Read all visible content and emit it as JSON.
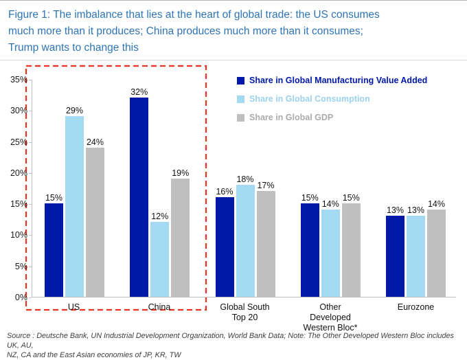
{
  "title_lines": [
    "Figure 1: The imbalance that lies at the heart of global trade: the US consumes",
    "much more than it produces; China produces much more than it consumes;",
    "Trump wants to change this"
  ],
  "source_lines": [
    "Source : Deutsche Bank, UN Industrial Development Organization, World Bank Data; Note: The Other Developed Western Bloc includes UK, AU,",
    "NZ, CA and the East Asian economies of JP, KR, TW"
  ],
  "colors": {
    "title_text": "#2E74B5",
    "axis_line": "#BFBFBF",
    "tick_text": "#1A1A1A",
    "value_label_text": "#111111",
    "highlight_box": "#EA3323"
  },
  "chart_data": {
    "type": "bar",
    "title": "Figure 1: The imbalance that lies at the heart of global trade: the US consumes much more than it produces; China produces much more than it consumes; Trump wants to change this",
    "categories": [
      "US",
      "China",
      "Global South Top 20",
      "Other Developed Western Bloc*",
      "Eurozone"
    ],
    "series": [
      {
        "name": "Share in Global Manufacturing Value Added",
        "color": "#0018A8",
        "text_color": "#0018A8",
        "values": [
          15,
          32,
          16,
          15,
          13
        ]
      },
      {
        "name": "Share in Global Consumption",
        "color": "#A4D9F2",
        "text_color": "#9CD2EF",
        "values": [
          29,
          12,
          18,
          14,
          13
        ]
      },
      {
        "name": "Share in Global GDP",
        "color": "#BFBFBF",
        "text_color": "#ABABAB",
        "values": [
          24,
          19,
          17,
          15,
          14
        ]
      }
    ],
    "value_label_suffix": "%",
    "xlabel": "",
    "ylabel": "",
    "ylim": [
      0,
      35
    ],
    "ytick_step": 5,
    "ytick_labels": [
      "0%",
      "5%",
      "10%",
      "15%",
      "20%",
      "25%",
      "30%",
      "35%"
    ],
    "grid": false,
    "legend_position": "top-right",
    "annotation": {
      "type": "dashed-box",
      "color": "#EA3323",
      "covers": [
        "US",
        "China"
      ]
    }
  }
}
